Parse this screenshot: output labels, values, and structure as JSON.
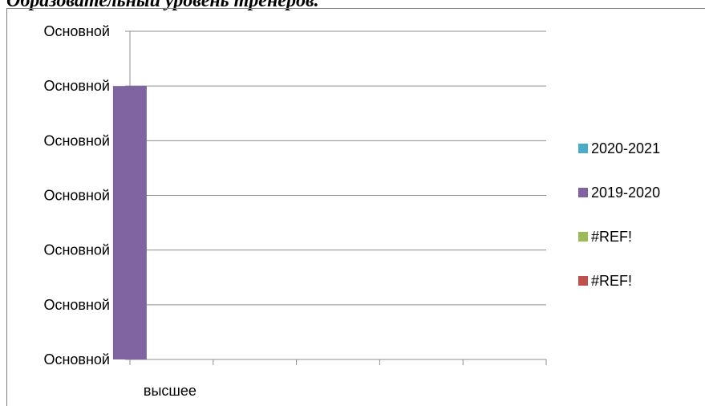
{
  "title": "Образовательный уровень тренеров.",
  "chart_data": {
    "type": "bar",
    "categories": [
      "высшее",
      "",
      "",
      "",
      ""
    ],
    "y_tick_labels": [
      "Основной",
      "Основной",
      "Основной",
      "Основной",
      "Основной",
      "Основной",
      "Основной"
    ],
    "series": [
      {
        "name": "2020-2021",
        "color": "#4bacc6",
        "values": [
          0,
          0,
          0,
          0,
          0
        ]
      },
      {
        "name": "2019-2020",
        "color": "#8064a2",
        "values": [
          5,
          0,
          0,
          0,
          0
        ]
      },
      {
        "name": "#REF!",
        "color": "#9bbb59",
        "values": [
          0,
          0,
          0,
          0,
          0
        ]
      },
      {
        "name": "#REF!",
        "color": "#c0504d",
        "values": [
          0,
          0,
          0,
          0,
          0
        ]
      }
    ],
    "ylim": [
      0,
      6
    ],
    "grid": true,
    "legend_position": "right"
  }
}
